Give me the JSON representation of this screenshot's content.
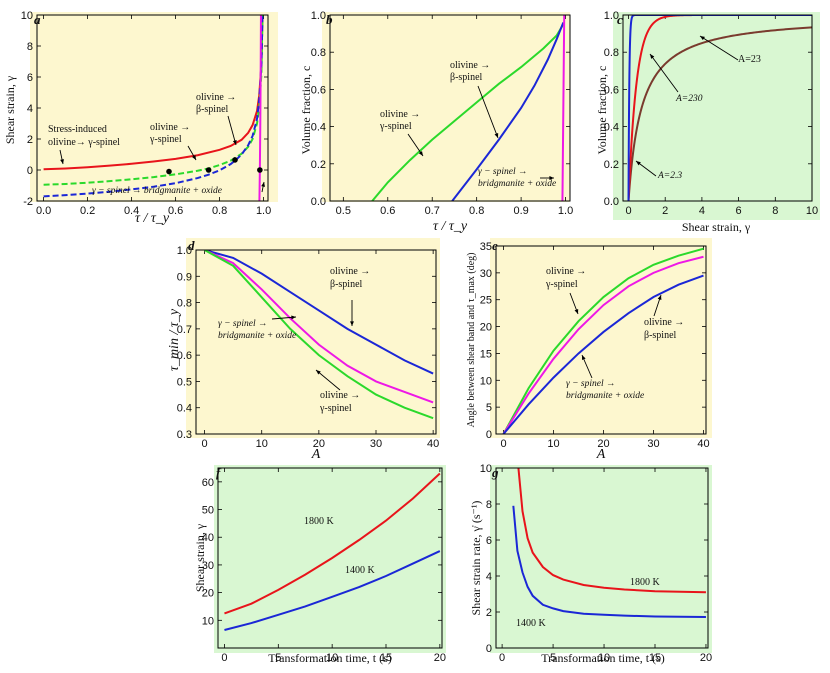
{
  "colors": {
    "panel_yellow": "#fdf7cf",
    "panel_green": "#d9f7d2",
    "red": "#e8141b",
    "green": "#2bd92b",
    "blue": "#1b27d6",
    "magenta": "#ee18e6",
    "brown": "#7a3b2e"
  },
  "chart_data": [
    {
      "id": "a",
      "type": "line",
      "panel_label": "a",
      "xlabel": "τ / τ_y",
      "ylabel": "Shear strain, γ",
      "xlim": [
        -0.03,
        1.02
      ],
      "ylim": [
        -2,
        10
      ],
      "xticks": [
        "0.0",
        "0.2",
        "0.4",
        "0.6",
        "0.8",
        "1.0"
      ],
      "yticks": [
        "-2",
        "0",
        "2",
        "4",
        "6",
        "8",
        "10"
      ],
      "series": [
        {
          "name": "Stress-induced olivine→ γ-spinel",
          "style": "solid",
          "color": "#e8141b",
          "x": [
            0,
            0.1,
            0.2,
            0.3,
            0.4,
            0.5,
            0.6,
            0.7,
            0.8,
            0.85,
            0.9,
            0.93,
            0.95,
            0.97,
            0.98,
            0.99,
            0.995
          ],
          "y": [
            0.05,
            0.1,
            0.18,
            0.28,
            0.4,
            0.55,
            0.72,
            0.95,
            1.3,
            1.55,
            1.95,
            2.4,
            2.9,
            3.8,
            4.8,
            6.8,
            10
          ]
        },
        {
          "name": "olivine → γ-spinel",
          "style": "dashed",
          "color": "#2bd92b",
          "x": [
            0,
            0.1,
            0.2,
            0.3,
            0.4,
            0.5,
            0.6,
            0.7,
            0.75,
            0.8,
            0.85,
            0.9,
            0.93,
            0.95,
            0.97,
            0.98,
            0.99,
            0.995
          ],
          "y": [
            -0.95,
            -0.9,
            -0.82,
            -0.72,
            -0.6,
            -0.46,
            -0.28,
            -0.05,
            0.1,
            0.32,
            0.6,
            1.05,
            1.5,
            2.0,
            3.0,
            4.0,
            6.2,
            10
          ]
        },
        {
          "name": "olivine → β-spinel",
          "style": "dashed",
          "color": "#1b27d6",
          "x": [
            0,
            0.1,
            0.2,
            0.3,
            0.4,
            0.5,
            0.6,
            0.7,
            0.75,
            0.8,
            0.85,
            0.87,
            0.9,
            0.93,
            0.95,
            0.97,
            0.98,
            0.99,
            0.995
          ],
          "y": [
            -1.7,
            -1.62,
            -1.52,
            -1.4,
            -1.25,
            -1.08,
            -0.85,
            -0.52,
            -0.3,
            -0.02,
            0.38,
            0.6,
            1.0,
            1.6,
            2.2,
            3.3,
            4.5,
            6.8,
            10
          ]
        },
        {
          "name": "γ − spinel → bridgmanite + oxide",
          "style": "solid",
          "color": "#ee18e6",
          "x": [
            0.981,
            0.983,
            0.985,
            0.987,
            0.988
          ],
          "y": [
            -2,
            0,
            3,
            7,
            10
          ]
        }
      ],
      "markers": {
        "x": [
          0.57,
          0.75,
          0.87,
          0.983
        ],
        "y": [
          -0.1,
          0.0,
          0.65,
          0.0
        ]
      },
      "annotations": [
        {
          "text": "Stress-induced"
        },
        {
          "text": "olivine→ γ-spinel"
        },
        {
          "text": "olivine →"
        },
        {
          "text": "γ-spinel"
        },
        {
          "text": "olivine →"
        },
        {
          "text": "β-spinel"
        },
        {
          "text": "γ − spinel → bridgmanite + oxide"
        }
      ]
    },
    {
      "id": "b",
      "type": "line",
      "panel_label": "b",
      "xlabel": "τ / τ_y",
      "ylabel": "Volume fraction, c",
      "xlim": [
        0.47,
        1.01
      ],
      "ylim": [
        0,
        1
      ],
      "xticks": [
        "0.5",
        "0.6",
        "0.7",
        "0.8",
        "0.9",
        "1.0"
      ],
      "yticks": [
        "0.0",
        "0.2",
        "0.4",
        "0.6",
        "0.8",
        "1.0"
      ],
      "series": [
        {
          "name": "olivine → γ-spinel",
          "color": "#2bd92b",
          "x": [
            0.565,
            0.6,
            0.65,
            0.7,
            0.75,
            0.8,
            0.85,
            0.9,
            0.95,
            0.98,
            0.995
          ],
          "y": [
            0,
            0.1,
            0.22,
            0.33,
            0.43,
            0.53,
            0.63,
            0.72,
            0.82,
            0.89,
            0.95
          ]
        },
        {
          "name": "olivine → β-spinel",
          "color": "#1b27d6",
          "x": [
            0.745,
            0.8,
            0.85,
            0.9,
            0.93,
            0.96,
            0.98,
            0.995
          ],
          "y": [
            0,
            0.17,
            0.33,
            0.5,
            0.62,
            0.76,
            0.87,
            0.96
          ]
        },
        {
          "name": "γ − spinel → bridgmanite + oxide",
          "color": "#ee18e6",
          "x": [
            0.993,
            0.994,
            0.995,
            0.996,
            0.997
          ],
          "y": [
            0,
            0.25,
            0.5,
            0.75,
            1.0
          ]
        }
      ],
      "annotations": [
        {
          "text": "olivine →"
        },
        {
          "text": "β-spinel"
        },
        {
          "text": "olivine →"
        },
        {
          "text": "γ-spinel"
        },
        {
          "text": "γ − spinel →"
        },
        {
          "text": "bridgmanite + oxide"
        }
      ]
    },
    {
      "id": "c",
      "type": "line",
      "panel_label": "c",
      "xlabel": "Shear strain, γ",
      "ylabel": "Volume fraction, c",
      "xlim": [
        -0.3,
        10
      ],
      "ylim": [
        0,
        1
      ],
      "xticks": [
        "0",
        "2",
        "4",
        "6",
        "8",
        "10"
      ],
      "yticks": [
        "0.0",
        "0.2",
        "0.4",
        "0.6",
        "0.8",
        "1.0"
      ],
      "series": [
        {
          "name": "A=2.3",
          "color": "#7a3b2e",
          "k": 2.3
        },
        {
          "name": "A=23",
          "color": "#e8141b",
          "k": 23
        },
        {
          "name": "A=230",
          "color": "#1b27d6",
          "k": 230
        }
      ],
      "annotations": [
        {
          "text": "A=23"
        },
        {
          "text": "A=230"
        },
        {
          "text": "A=2.3"
        }
      ]
    },
    {
      "id": "d",
      "type": "line",
      "panel_label": "d",
      "xlabel": "A",
      "ylabel": "τ_min / τ_y",
      "xlim": [
        -1.5,
        40.5
      ],
      "ylim": [
        0.3,
        1.0
      ],
      "xticks": [
        "0",
        "10",
        "20",
        "30",
        "40"
      ],
      "yticks": [
        "0.3",
        "0.4",
        "0.5",
        "0.6",
        "0.7",
        "0.8",
        "0.9",
        "1.0"
      ],
      "series": [
        {
          "name": "olivine → β-spinel",
          "color": "#1b27d6",
          "x": [
            0,
            5,
            10,
            15,
            20,
            25,
            30,
            35,
            40
          ],
          "y": [
            1.0,
            0.97,
            0.91,
            0.84,
            0.77,
            0.7,
            0.64,
            0.58,
            0.53
          ]
        },
        {
          "name": "γ − spinel → bridgmanite + oxide",
          "color": "#ee18e6",
          "x": [
            0,
            5,
            10,
            15,
            20,
            25,
            30,
            35,
            40
          ],
          "y": [
            1.0,
            0.95,
            0.85,
            0.74,
            0.64,
            0.56,
            0.5,
            0.46,
            0.42
          ]
        },
        {
          "name": "olivine → γ-spinel",
          "color": "#2bd92b",
          "x": [
            0,
            5,
            10,
            15,
            20,
            25,
            30,
            35,
            40
          ],
          "y": [
            1.0,
            0.94,
            0.82,
            0.7,
            0.6,
            0.52,
            0.45,
            0.4,
            0.36
          ]
        }
      ],
      "annotations": [
        {
          "text": "olivine →"
        },
        {
          "text": "β-spinel"
        },
        {
          "text": "γ − spinel →"
        },
        {
          "text": "bridgmanite + oxide"
        },
        {
          "text": "olivine →"
        },
        {
          "text": "γ-spinel"
        }
      ]
    },
    {
      "id": "e",
      "type": "line",
      "panel_label": "e",
      "xlabel": "A",
      "ylabel": "Angle between shear band and τ_max (deg)",
      "xlim": [
        -1.5,
        40.5
      ],
      "ylim": [
        0,
        35
      ],
      "xticks": [
        "0",
        "10",
        "20",
        "30",
        "40"
      ],
      "yticks": [
        "0",
        "5",
        "10",
        "15",
        "20",
        "25",
        "30",
        "35"
      ],
      "series": [
        {
          "name": "olivine → γ-spinel",
          "color": "#2bd92b",
          "x": [
            0,
            5,
            10,
            15,
            20,
            25,
            30,
            35,
            40
          ],
          "y": [
            0,
            8.5,
            15.5,
            21.0,
            25.5,
            29.0,
            31.5,
            33.2,
            34.5
          ]
        },
        {
          "name": "γ − spinel → bridgmanite + oxide",
          "color": "#ee18e6",
          "x": [
            0,
            5,
            10,
            15,
            20,
            25,
            30,
            35,
            40
          ],
          "y": [
            0,
            7.5,
            14.0,
            19.5,
            24.0,
            27.5,
            30.0,
            31.8,
            33.0
          ]
        },
        {
          "name": "olivine → β-spinel",
          "color": "#1b27d6",
          "x": [
            0,
            5,
            10,
            15,
            20,
            25,
            30,
            35,
            40
          ],
          "y": [
            0,
            5.5,
            10.5,
            15.0,
            19.0,
            22.5,
            25.5,
            27.8,
            29.5
          ]
        }
      ],
      "annotations": [
        {
          "text": "olivine →"
        },
        {
          "text": "γ-spinel"
        },
        {
          "text": "olivine →"
        },
        {
          "text": "β-spinel"
        },
        {
          "text": "γ − spinel →"
        },
        {
          "text": "bridgmanite + oxide"
        }
      ]
    },
    {
      "id": "f",
      "type": "line",
      "panel_label": "f",
      "xlabel": "Transformation time, t (s)",
      "ylabel": "Shear strain, γ",
      "xlim": [
        -0.6,
        20.2
      ],
      "ylim": [
        0,
        65
      ],
      "xticks": [
        "0",
        "5",
        "10",
        "15",
        "20"
      ],
      "yticks": [
        "10",
        "20",
        "30",
        "40",
        "50",
        "60"
      ],
      "series": [
        {
          "name": "1800 K",
          "color": "#e8141b",
          "x": [
            0,
            2.5,
            5,
            7.5,
            10,
            12.5,
            15,
            17.5,
            20
          ],
          "y": [
            12.5,
            16,
            21,
            26.5,
            32.5,
            39,
            46,
            54,
            63
          ]
        },
        {
          "name": "1400 K",
          "color": "#1b27d6",
          "x": [
            0,
            2.5,
            5,
            7.5,
            10,
            12.5,
            15,
            17.5,
            20
          ],
          "y": [
            6.5,
            9,
            12,
            15,
            18.5,
            22,
            26,
            30.5,
            35
          ]
        }
      ],
      "annotations": [
        {
          "text": "1800 K"
        },
        {
          "text": "1400 K"
        }
      ]
    },
    {
      "id": "g",
      "type": "line",
      "panel_label": "g",
      "xlabel": "Transformation time, t (s)",
      "ylabel": "Shear strain rate, γ̇ (s⁻¹)",
      "xlim": [
        -0.6,
        20.2
      ],
      "ylim": [
        0,
        10
      ],
      "xticks": [
        "0",
        "5",
        "10",
        "15",
        "20"
      ],
      "yticks": [
        "0",
        "2",
        "4",
        "6",
        "8",
        "10"
      ],
      "series": [
        {
          "name": "1800 K",
          "color": "#e8141b",
          "x": [
            1.6,
            2,
            2.5,
            3,
            4,
            5,
            6,
            8,
            10,
            12,
            15,
            20
          ],
          "y": [
            10,
            7.6,
            6.1,
            5.3,
            4.5,
            4.05,
            3.8,
            3.5,
            3.35,
            3.25,
            3.15,
            3.1
          ]
        },
        {
          "name": "1400 K",
          "color": "#1b27d6",
          "x": [
            1.1,
            1.5,
            2,
            2.5,
            3,
            4,
            5,
            6,
            8,
            10,
            12,
            15,
            20
          ],
          "y": [
            7.9,
            5.4,
            4.2,
            3.4,
            2.9,
            2.4,
            2.2,
            2.05,
            1.9,
            1.85,
            1.8,
            1.75,
            1.72
          ]
        }
      ],
      "annotations": [
        {
          "text": "1800 K"
        },
        {
          "text": "1400 K"
        }
      ]
    }
  ]
}
